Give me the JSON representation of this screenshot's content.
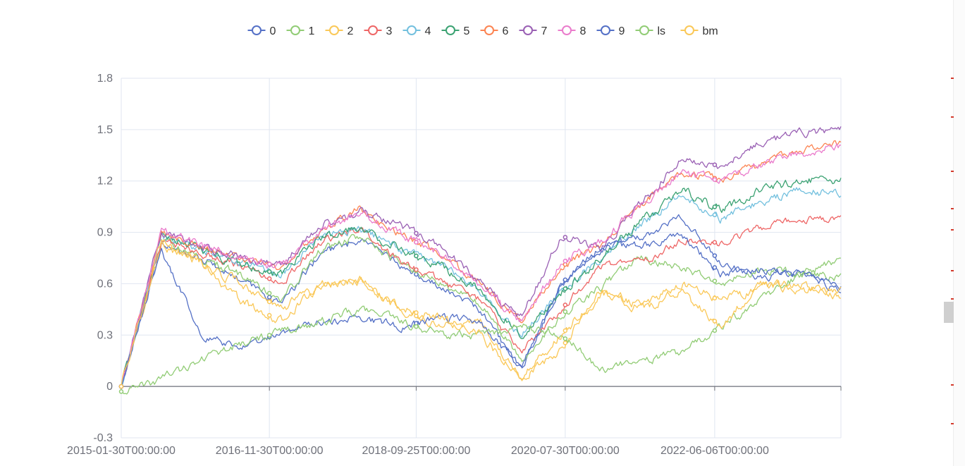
{
  "chart_data": {
    "type": "line",
    "title": "",
    "xlabel": "",
    "ylabel": "",
    "ylim": [
      -0.3,
      1.8
    ],
    "yticks": [
      "1.8",
      "1.5",
      "1.2",
      "0.9",
      "0.6",
      "0.3",
      "0",
      "-0.3"
    ],
    "x_tick_labels": [
      "2015-01-30T00:00:00",
      "2016-11-30T00:00:00",
      "2018-09-25T00:00:00",
      "2020-07-30T00:00:00",
      "2022-06-06T00:00:00"
    ],
    "x_range": [
      "2015-01-30",
      "2023-12-29"
    ],
    "grid": true,
    "legend_position": "top-center",
    "series": [
      {
        "name": "0",
        "color": "#5470c6",
        "key_values": [
          0.0,
          0.82,
          0.75,
          0.62,
          0.48,
          0.78,
          0.86,
          0.7,
          0.58,
          0.44,
          0.1,
          0.6,
          0.8,
          0.87,
          1.0,
          0.72,
          0.63,
          0.67,
          0.55
        ]
      },
      {
        "name": "1",
        "color": "#91cc75",
        "key_values": [
          0.0,
          0.85,
          0.75,
          0.65,
          0.5,
          0.8,
          0.88,
          0.72,
          0.6,
          0.48,
          0.15,
          0.42,
          0.58,
          0.75,
          0.7,
          0.6,
          0.68,
          0.66,
          0.63
        ]
      },
      {
        "name": "2",
        "color": "#fac858",
        "key_values": [
          0.0,
          0.82,
          0.72,
          0.5,
          0.38,
          0.6,
          0.62,
          0.45,
          0.35,
          0.38,
          0.05,
          0.22,
          0.55,
          0.48,
          0.6,
          0.5,
          0.58,
          0.6,
          0.52
        ]
      },
      {
        "name": "3",
        "color": "#ee6666",
        "key_values": [
          0.0,
          0.85,
          0.78,
          0.7,
          0.6,
          0.85,
          0.92,
          0.72,
          0.62,
          0.5,
          0.2,
          0.45,
          0.7,
          0.72,
          0.85,
          0.84,
          0.93,
          0.98,
          0.97
        ]
      },
      {
        "name": "4",
        "color": "#73c0de",
        "key_values": [
          0.0,
          0.88,
          0.8,
          0.72,
          0.65,
          0.88,
          0.92,
          0.8,
          0.7,
          0.55,
          0.3,
          0.55,
          0.75,
          0.95,
          1.12,
          0.98,
          1.08,
          1.14,
          1.13
        ]
      },
      {
        "name": "5",
        "color": "#3ba272",
        "key_values": [
          0.0,
          0.88,
          0.8,
          0.72,
          0.65,
          0.88,
          0.93,
          0.8,
          0.7,
          0.56,
          0.3,
          0.55,
          0.75,
          0.96,
          1.15,
          1.03,
          1.15,
          1.2,
          1.2
        ]
      },
      {
        "name": "6",
        "color": "#fc8452",
        "key_values": [
          0.0,
          0.9,
          0.82,
          0.75,
          0.7,
          0.92,
          1.04,
          0.88,
          0.78,
          0.6,
          0.38,
          0.7,
          0.82,
          1.06,
          1.25,
          1.21,
          1.3,
          1.38,
          1.42
        ]
      },
      {
        "name": "7",
        "color": "#9a60b4",
        "key_values": [
          0.0,
          0.9,
          0.82,
          0.75,
          0.7,
          0.95,
          1.02,
          0.94,
          0.82,
          0.6,
          0.4,
          0.88,
          0.8,
          1.07,
          1.32,
          1.29,
          1.43,
          1.48,
          1.5
        ]
      },
      {
        "name": "8",
        "color": "#ea7ccc",
        "key_values": [
          0.0,
          0.9,
          0.82,
          0.75,
          0.7,
          0.92,
          1.03,
          0.88,
          0.78,
          0.58,
          0.38,
          0.72,
          0.84,
          1.07,
          1.25,
          1.2,
          1.3,
          1.36,
          1.41
        ]
      },
      {
        "name": "9",
        "color": "#5470c6",
        "key_values": [
          0.0,
          0.8,
          0.3,
          0.22,
          0.32,
          0.38,
          0.4,
          0.35,
          0.4,
          0.38,
          0.1,
          0.6,
          0.82,
          0.82,
          0.88,
          0.66,
          0.68,
          0.65,
          0.58
        ]
      },
      {
        "name": "ls",
        "color": "#91cc75",
        "key_values": [
          -0.03,
          0.04,
          0.16,
          0.25,
          0.32,
          0.38,
          0.45,
          0.38,
          0.3,
          0.3,
          0.35,
          0.3,
          0.1,
          0.15,
          0.2,
          0.35,
          0.5,
          0.65,
          0.75
        ]
      },
      {
        "name": "bm",
        "color": "#fac858",
        "key_values": [
          0.0,
          0.85,
          0.72,
          0.6,
          0.45,
          0.6,
          0.62,
          0.45,
          0.4,
          0.3,
          0.05,
          0.3,
          0.55,
          0.45,
          0.55,
          0.35,
          0.6,
          0.57,
          0.55
        ]
      }
    ]
  }
}
